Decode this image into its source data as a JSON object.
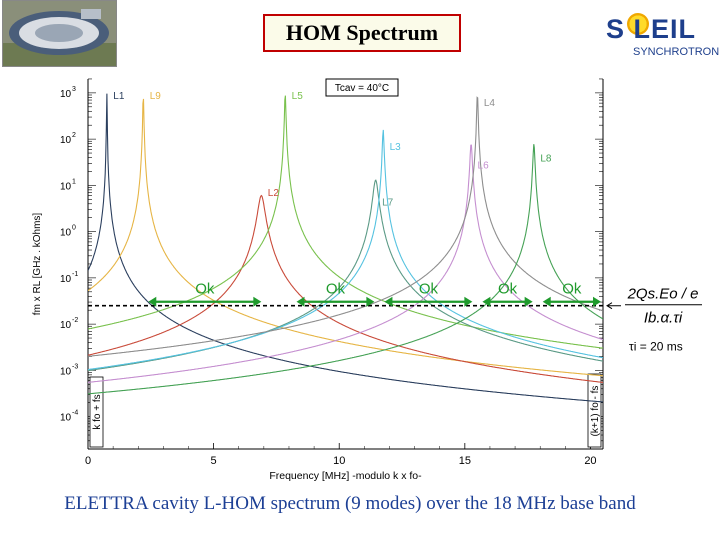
{
  "title": "HOM Spectrum",
  "logo": {
    "brand": "S LEIL",
    "sub": "SYNCHROTRON"
  },
  "caption": "ELETTRA cavity L-HOM spectrum (9 modes) over the 18 MHz base band",
  "chart_data": {
    "type": "line",
    "xlabel": "Frequency [MHz] -modulo k x fo-",
    "ylabel": "fm x RL [GHz . kOhms]",
    "xlim": [
      0,
      20.5
    ],
    "ylim_log10": [
      -4.7,
      3.3
    ],
    "xticks": [
      "0",
      "5",
      "10",
      "15",
      "20"
    ],
    "yticks": [
      "10^3",
      "10^2",
      "10^1",
      "10^0",
      "10^-1",
      "10^-2",
      "10^-3",
      "10^-4"
    ],
    "annotation_temp": "Tcav = 40°C",
    "threshold": {
      "value": 0.025,
      "formula_num": "2Qs.Eo / e",
      "formula_den": "Ib.α.τi",
      "tau_label": "τi = 20 ms"
    },
    "ok_labels": [
      {
        "text": "Ok",
        "x_from": 2.4,
        "x_to": 6.9
      },
      {
        "text": "Ok",
        "x_from": 8.3,
        "x_to": 11.4
      },
      {
        "text": "Ok",
        "x_from": 11.8,
        "x_to": 15.3
      },
      {
        "text": "Ok",
        "x_from": 15.7,
        "x_to": 17.7
      },
      {
        "text": "Ok",
        "x_from": 18.1,
        "x_to": 20.8
      }
    ],
    "left_band_label": "k fo + fs",
    "right_band_label": "(k+1) fo - fs",
    "series": [
      {
        "name": "L1",
        "color": "#2b3f5e",
        "f0": 0.75,
        "peak": 1000,
        "width": 0.009
      },
      {
        "name": "L9",
        "color": "#e6b545",
        "f0": 2.2,
        "peak": 1000,
        "width": 0.016
      },
      {
        "name": "L2",
        "color": "#c94b3a",
        "f0": 6.9,
        "peak": 6,
        "width": 0.13
      },
      {
        "name": "L5",
        "color": "#79c14d",
        "f0": 7.85,
        "peak": 1000,
        "width": 0.022
      },
      {
        "name": "L7",
        "color": "#5b9a86",
        "f0": 11.45,
        "peak": 13,
        "width": 0.1
      },
      {
        "name": "L3",
        "color": "#55c2e0",
        "f0": 11.75,
        "peak": 160,
        "width": 0.03
      },
      {
        "name": "L6",
        "color": "#c58fd0",
        "f0": 15.25,
        "peak": 80,
        "width": 0.04
      },
      {
        "name": "L4",
        "color": "#8e8e8e",
        "f0": 15.5,
        "peak": 1000,
        "width": 0.022
      },
      {
        "name": "L8",
        "color": "#46a256",
        "f0": 17.75,
        "peak": 80,
        "width": 0.035
      }
    ]
  }
}
